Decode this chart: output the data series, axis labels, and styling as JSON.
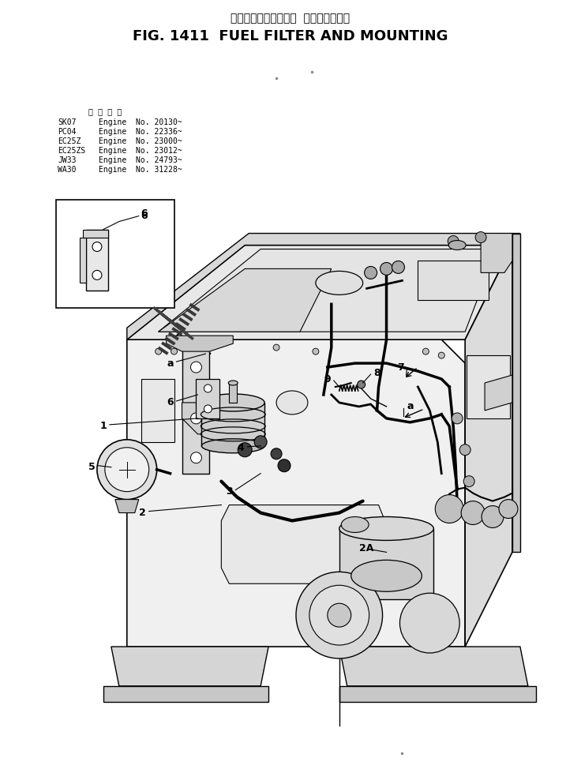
{
  "title_japanese": "フェルフィルタおよび  マウンティング",
  "title_english": "FIG. 1411  FUEL FILTER AND MOUNTING",
  "background_color": "#ffffff",
  "text_color": "#000000",
  "fig_width": 7.36,
  "fig_height": 9.74,
  "dpi": 100,
  "spec_table_header": "適  用  号  機",
  "spec_table_data": [
    [
      "SK07",
      "Engine  No. 20130~"
    ],
    [
      "PC04",
      "Engine  No. 22336~"
    ],
    [
      "EC25Z",
      "Engine  No. 23000~"
    ],
    [
      "EC25ZS",
      "Engine  No. 23012~"
    ],
    [
      "JW33",
      "Engine  No. 24793~"
    ],
    [
      "WA30",
      "Engine  No. 31228~"
    ]
  ]
}
